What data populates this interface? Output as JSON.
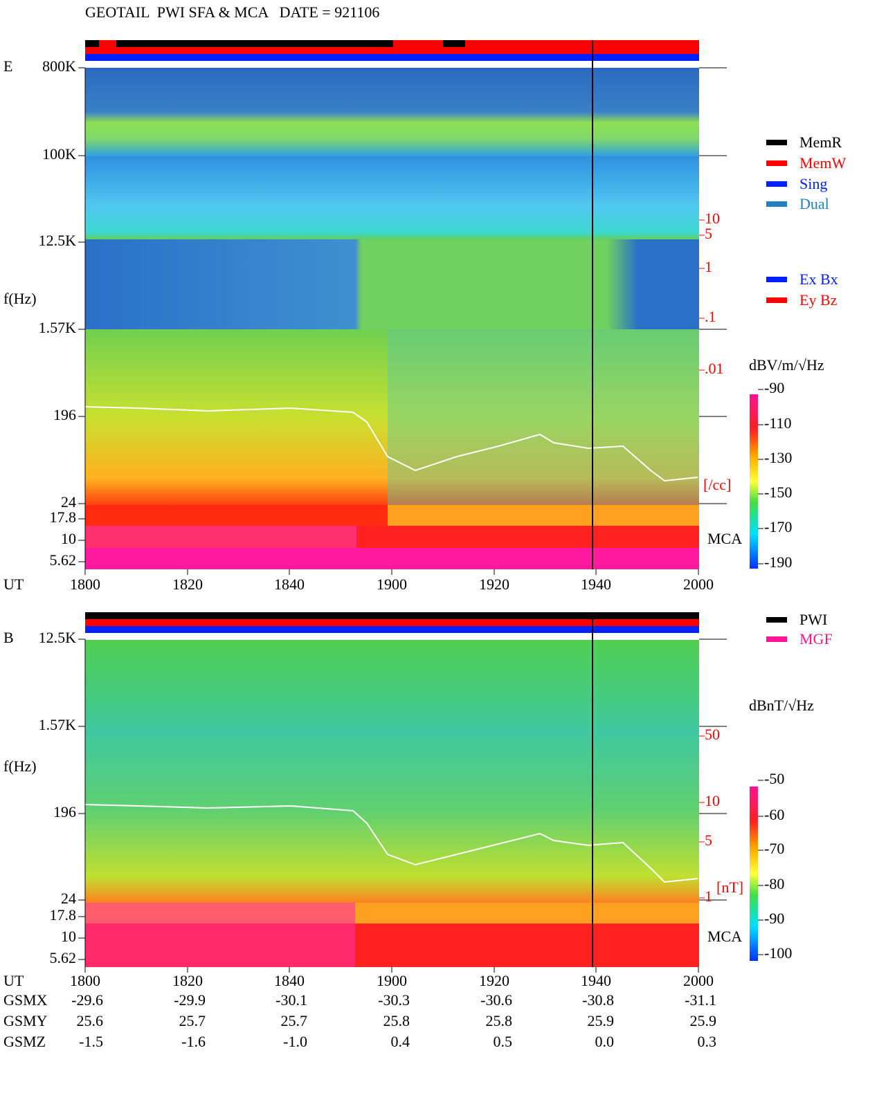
{
  "header": {
    "title": "GEOTAIL  PWI SFA & MCA   DATE = 921106"
  },
  "panel_e": {
    "label": "E",
    "axis_label": "f(Hz)",
    "freq_ticks": [
      "800K",
      "100K",
      "12.5K",
      "1.57K",
      "196",
      "24",
      "17.8",
      "10",
      "5.62"
    ],
    "time_label": "UT",
    "time_ticks": [
      "1800",
      "1820",
      "1840",
      "1900",
      "1920",
      "1940",
      "2000"
    ],
    "density_ticks": [
      "10",
      "5",
      "1",
      ".1",
      ".01"
    ],
    "density_unit": "[/cc]",
    "mca": "MCA",
    "colorbar_unit": "dBV/m/√Hz",
    "colorbar_ticks": [
      "-90",
      "-110",
      "-130",
      "-150",
      "-170",
      "-190"
    ]
  },
  "legend_mode": [
    "MemR",
    "MemW",
    "Sing",
    "Dual"
  ],
  "legend_components": [
    "Ex Bx",
    "Ey Bz"
  ],
  "panel_b": {
    "label": "B",
    "axis_label": "f(Hz)",
    "freq_ticks": [
      "12.5K",
      "1.57K",
      "196",
      "24",
      "17.8",
      "10",
      "5.62"
    ],
    "time_label": "UT",
    "time_ticks": [
      "1800",
      "1820",
      "1840",
      "1900",
      "1920",
      "1940",
      "2000"
    ],
    "field_ticks": [
      "50",
      "10",
      "5",
      "1"
    ],
    "field_unit": "[nT]",
    "mca": "MCA",
    "colorbar_unit": "dBnT/√Hz",
    "colorbar_ticks": [
      "-50",
      "-60",
      "-70",
      "-80",
      "-90",
      "-100"
    ]
  },
  "legend_source": [
    "PWI",
    "MGF"
  ],
  "orbit": [
    {
      "label": "GSMX",
      "values": [
        "-29.6",
        "-29.9",
        "-30.1",
        "-30.3",
        "-30.6",
        "-30.8",
        "-31.1"
      ]
    },
    {
      "label": "GSMY",
      "values": [
        "25.6",
        "25.7",
        "25.7",
        "25.8",
        "25.8",
        "25.9",
        "25.9"
      ]
    },
    {
      "label": "GSMZ",
      "values": [
        "-1.5",
        "-1.6",
        "-1.0",
        "0.4",
        "0.5",
        "0.0",
        "0.3"
      ]
    }
  ]
}
